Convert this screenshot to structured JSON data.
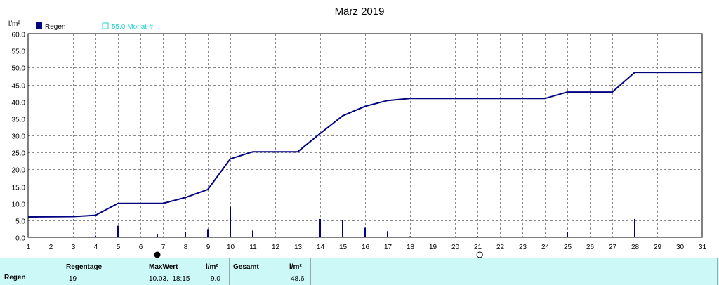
{
  "title": "März 2019",
  "unit": "l/m²",
  "legend": {
    "rain_label": "Regen",
    "rain_color": "#000080",
    "threshold_label": "55.0 Monat-#",
    "threshold_color": "#20d0d0"
  },
  "chart_data": {
    "type": "bar+line",
    "title": "März 2019",
    "ylabel": "l/m²",
    "xlabel": "",
    "x_ticks": [
      "1",
      "2",
      "3",
      "4",
      "5",
      "6",
      "7",
      "8",
      "9",
      "10",
      "11",
      "12",
      "13",
      "14",
      "15",
      "16",
      "17",
      "18",
      "19",
      "20",
      "21",
      "22",
      "23",
      "24",
      "25",
      "26",
      "27",
      "28",
      "29",
      "30",
      "31"
    ],
    "y_ticks": [
      "0.0",
      "5.0",
      "10.0",
      "15.0",
      "20.0",
      "25.0",
      "30.0",
      "35.0",
      "40.0",
      "45.0",
      "50.0",
      "55.0",
      "60.0"
    ],
    "xlim": [
      1,
      31
    ],
    "ylim": [
      0,
      60
    ],
    "grid": true,
    "legend_position": "top-left",
    "threshold": 55.0,
    "daily_rain": [
      {
        "day": 4,
        "value": 0.5
      },
      {
        "day": 5,
        "value": 3.4
      },
      {
        "day": 6.75,
        "value": 0.8
      },
      {
        "day": 8,
        "value": 1.6
      },
      {
        "day": 9,
        "value": 2.4
      },
      {
        "day": 10,
        "value": 9.0
      },
      {
        "day": 11,
        "value": 2.0
      },
      {
        "day": 14,
        "value": 5.4
      },
      {
        "day": 15,
        "value": 5.0
      },
      {
        "day": 16,
        "value": 2.8
      },
      {
        "day": 17,
        "value": 1.8
      },
      {
        "day": 18,
        "value": 0.3
      },
      {
        "day": 21,
        "value": 0.3
      },
      {
        "day": 25,
        "value": 1.6
      },
      {
        "day": 28,
        "value": 5.4
      }
    ],
    "cumulative": [
      {
        "day": 1,
        "value": 6.0
      },
      {
        "day": 3,
        "value": 6.1
      },
      {
        "day": 4,
        "value": 6.5
      },
      {
        "day": 5,
        "value": 10.0
      },
      {
        "day": 7,
        "value": 10.0
      },
      {
        "day": 8,
        "value": 11.7
      },
      {
        "day": 9,
        "value": 14.1
      },
      {
        "day": 10,
        "value": 23.1
      },
      {
        "day": 11,
        "value": 25.2
      },
      {
        "day": 13,
        "value": 25.2
      },
      {
        "day": 14,
        "value": 30.6
      },
      {
        "day": 15,
        "value": 35.8
      },
      {
        "day": 16,
        "value": 38.6
      },
      {
        "day": 17,
        "value": 40.3
      },
      {
        "day": 18,
        "value": 40.9
      },
      {
        "day": 24,
        "value": 40.9
      },
      {
        "day": 25,
        "value": 42.8
      },
      {
        "day": 27,
        "value": 42.8
      },
      {
        "day": 28,
        "value": 48.6
      },
      {
        "day": 31,
        "value": 48.6
      }
    ],
    "moon_markers": [
      {
        "day": 6.75,
        "phase": "new-moon"
      },
      {
        "day": 21.1,
        "phase": "full-moon"
      }
    ]
  },
  "summary": {
    "row_label": "Regen",
    "regentage_label": "Regentage",
    "regentage_value": "19",
    "maxwert_label": "MaxWert",
    "maxwert_datetime": "10.03.  18:15",
    "maxwert_unit": "l/m²",
    "maxwert_value": "9.0",
    "gesamt_label": "Gesamt",
    "gesamt_unit": "l/m²",
    "gesamt_value": "48.6"
  }
}
